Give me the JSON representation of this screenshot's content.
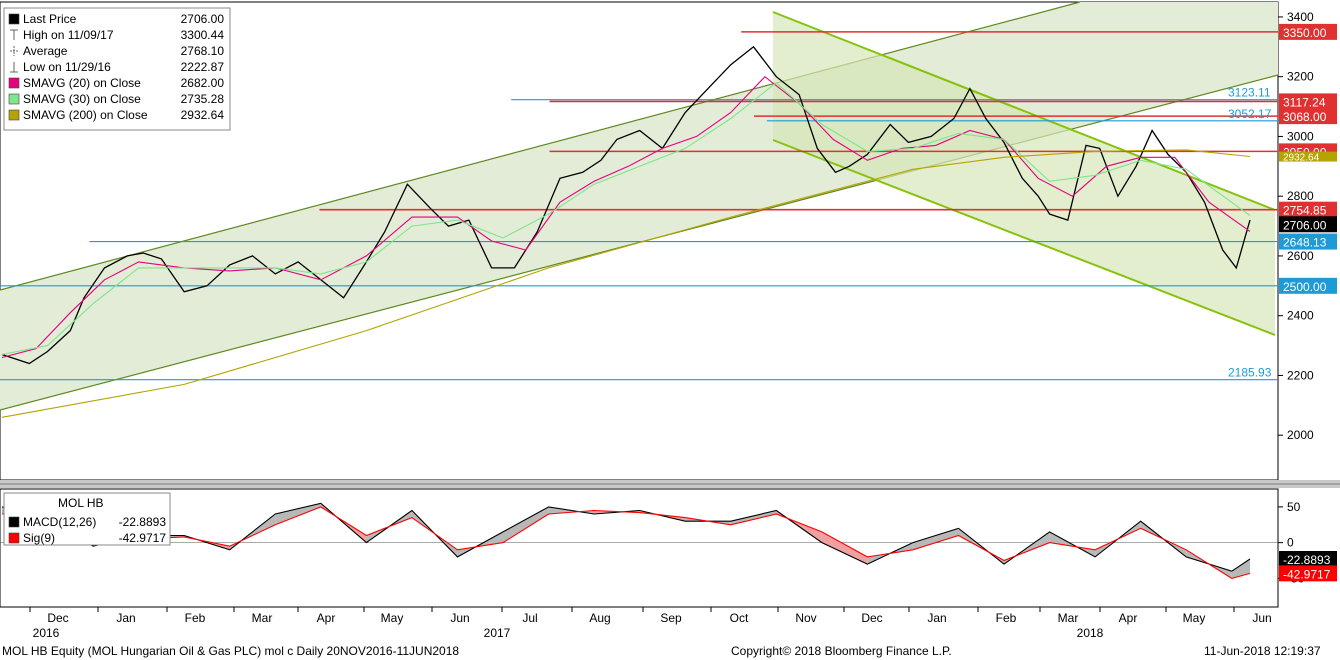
{
  "chart_data": {
    "type": "line",
    "security": "MOL HB",
    "x_ticks": {
      "months": [
        "Dec",
        "Jan",
        "Feb",
        "Mar",
        "Apr",
        "May",
        "Jun",
        "Jul",
        "Aug",
        "Sep",
        "Oct",
        "Nov",
        "Dec",
        "Jan",
        "Feb",
        "Mar",
        "Apr",
        "May",
        "Jun"
      ],
      "years": [
        "2016",
        "2017",
        "2018"
      ]
    },
    "price_axis": {
      "ylim": [
        1850,
        3450
      ],
      "ticks": [
        2000,
        2200,
        2400,
        2600,
        2800,
        3000,
        3200,
        3400
      ]
    },
    "legend": [
      {
        "label": "Last Price",
        "value": "2706.00",
        "color": "#000000",
        "kind": "box"
      },
      {
        "label": "High on 11/09/17",
        "value": "3300.44",
        "color": "#666666",
        "kind": "high"
      },
      {
        "label": "Average",
        "value": "2768.10",
        "color": "#666666",
        "kind": "avg"
      },
      {
        "label": "Low on 11/29/16",
        "value": "2222.87",
        "color": "#666666",
        "kind": "low"
      },
      {
        "label": "SMAVG (20) on Close",
        "value": "2682.00",
        "color": "#e6007e",
        "kind": "box"
      },
      {
        "label": "SMAVG (30) on Close",
        "value": "2735.28",
        "color": "#7ee68c",
        "kind": "box"
      },
      {
        "label": "SMAVG (200) on Close",
        "value": "2932.64",
        "color": "#b5a400",
        "kind": "box"
      }
    ],
    "series": [
      {
        "name": "Last Price",
        "color": "#000000",
        "x": [
          0,
          12,
          20,
          30,
          36,
          45,
          55,
          62,
          70,
          80,
          90,
          100,
          110,
          120,
          130,
          140,
          150,
          160,
          168,
          178,
          188,
          196,
          205,
          215,
          225,
          235,
          245,
          255,
          263,
          270,
          280,
          290,
          300,
          310,
          320,
          330,
          340,
          350,
          358,
          366,
          372,
          380,
          390,
          398,
          408,
          418,
          425,
          432,
          440,
          448,
          455,
          460,
          468,
          476,
          482,
          490,
          498,
          505,
          512,
          520,
          528,
          536,
          542,
          548
        ],
        "y": [
          2270,
          2240,
          2280,
          2350,
          2460,
          2560,
          2600,
          2610,
          2590,
          2480,
          2500,
          2570,
          2600,
          2540,
          2580,
          2520,
          2460,
          2580,
          2680,
          2840,
          2760,
          2700,
          2720,
          2560,
          2560,
          2680,
          2860,
          2880,
          2920,
          2990,
          3020,
          2960,
          3080,
          3160,
          3240,
          3300,
          3200,
          3140,
          2960,
          2880,
          2900,
          2940,
          3040,
          2980,
          3000,
          3060,
          3160,
          3060,
          2980,
          2860,
          2800,
          2740,
          2720,
          2970,
          2960,
          2800,
          2900,
          3020,
          2940,
          2880,
          2780,
          2620,
          2560,
          2720
        ]
      },
      {
        "name": "SMAVG (20) on Close",
        "color": "#e6007e",
        "x": [
          0,
          15,
          30,
          45,
          60,
          80,
          100,
          120,
          140,
          160,
          180,
          200,
          215,
          230,
          245,
          260,
          275,
          290,
          305,
          320,
          335,
          350,
          365,
          380,
          395,
          410,
          425,
          440,
          455,
          470,
          485,
          500,
          515,
          530,
          548
        ],
        "y": [
          2260,
          2290,
          2410,
          2520,
          2580,
          2560,
          2550,
          2560,
          2520,
          2600,
          2730,
          2730,
          2650,
          2620,
          2780,
          2850,
          2900,
          2960,
          3000,
          3080,
          3200,
          3110,
          2990,
          2920,
          2960,
          2970,
          3020,
          2990,
          2860,
          2800,
          2900,
          2930,
          2930,
          2780,
          2682
        ]
      },
      {
        "name": "SMAVG (30) on Close",
        "color": "#7ee68c",
        "x": [
          0,
          20,
          40,
          60,
          80,
          100,
          120,
          140,
          160,
          180,
          200,
          220,
          240,
          260,
          280,
          300,
          320,
          340,
          360,
          380,
          400,
          420,
          440,
          460,
          480,
          500,
          520,
          548
        ],
        "y": [
          2270,
          2300,
          2440,
          2560,
          2560,
          2560,
          2560,
          2540,
          2580,
          2700,
          2720,
          2660,
          2740,
          2840,
          2900,
          2960,
          3060,
          3180,
          3040,
          2950,
          2960,
          3010,
          2990,
          2850,
          2870,
          2920,
          2890,
          2735
        ]
      },
      {
        "name": "SMAVG (200) on Close",
        "color": "#b5a400",
        "x": [
          0,
          80,
          160,
          240,
          320,
          360,
          400,
          440,
          480,
          520,
          548
        ],
        "y": [
          2060,
          2170,
          2350,
          2560,
          2730,
          2810,
          2890,
          2930,
          2950,
          2955,
          2933
        ]
      }
    ],
    "levels": [
      {
        "value": 3350,
        "label": "3350.00",
        "color": "#e03030",
        "style": "box",
        "from": 0.58
      },
      {
        "value": 3123.11,
        "label": "3123.11",
        "color": "#1e9bd7",
        "style": "text",
        "from": 0.4
      },
      {
        "value": 3117.24,
        "label": "3117.24",
        "color": "#e03030",
        "style": "box",
        "from": 0.43
      },
      {
        "value": 3068,
        "label": "3068.00",
        "color": "#e03030",
        "style": "box",
        "from": 0.59
      },
      {
        "value": 3052.17,
        "label": "3052.17",
        "color": "#1e9bd7",
        "style": "text",
        "from": 0.6
      },
      {
        "value": 2950,
        "label": "2950.00",
        "color": "#e03030",
        "style": "box",
        "from": 0.43
      },
      {
        "value": 2754.85,
        "label": "2754.85",
        "color": "#e03030",
        "style": "box",
        "from": 0.25
      },
      {
        "value": 2648.13,
        "label": "2648.13",
        "color": "#1e9bd7",
        "style": "box",
        "from": 0.07
      },
      {
        "value": 2500,
        "label": "2500.00",
        "color": "#1e9bd7",
        "style": "box",
        "from": 0.0
      },
      {
        "value": 2185.93,
        "label": "2185.93",
        "color": "#1e9bd7",
        "style": "text",
        "from": 0.0
      }
    ],
    "last_price_tag": {
      "value": 2706,
      "label": "2706.00",
      "color": "#000000"
    },
    "sma200_tag": {
      "value": 2932.64,
      "label": "2932.64",
      "color": "#b5a400"
    },
    "macd_panel": {
      "title": "MOL HB",
      "ylim": [
        -90,
        75
      ],
      "ticks": [
        50,
        0,
        -50
      ],
      "zero_line": 0,
      "legend": [
        {
          "label": "MACD(12,26)",
          "value": "-22.8893",
          "color": "#000000"
        },
        {
          "label": "Sig(9)",
          "value": "-42.9717",
          "color": "#ff0000"
        }
      ],
      "macd": {
        "x": [
          0,
          20,
          40,
          60,
          80,
          100,
          120,
          140,
          160,
          180,
          200,
          220,
          240,
          260,
          280,
          300,
          320,
          340,
          360,
          380,
          400,
          420,
          440,
          460,
          480,
          500,
          520,
          540,
          548
        ],
        "y": [
          50,
          35,
          -5,
          10,
          10,
          -10,
          40,
          55,
          0,
          45,
          -20,
          15,
          50,
          40,
          45,
          30,
          30,
          45,
          0,
          -30,
          0,
          20,
          -30,
          15,
          -20,
          30,
          -20,
          -40,
          -22.8893
        ]
      },
      "signal": {
        "x": [
          0,
          20,
          40,
          60,
          80,
          100,
          120,
          140,
          160,
          180,
          200,
          220,
          240,
          260,
          280,
          300,
          320,
          340,
          360,
          380,
          400,
          420,
          440,
          460,
          480,
          500,
          520,
          540,
          548
        ],
        "y": [
          40,
          40,
          5,
          5,
          8,
          -5,
          25,
          50,
          10,
          35,
          -10,
          0,
          40,
          45,
          42,
          35,
          25,
          40,
          15,
          -20,
          -10,
          10,
          -25,
          0,
          -10,
          20,
          -10,
          -50,
          -42.9717
        ]
      },
      "macd_tag": {
        "value": -22.8893,
        "label": "-22.8893"
      },
      "signal_tag": {
        "value": -42.9717,
        "label": "-42.9717"
      }
    }
  },
  "footer": {
    "left": "MOL HB Equity (MOL Hungarian Oil & Gas PLC) mol c  Daily 20NOV2016-11JUN2018",
    "center": "Copyright© 2018 Bloomberg Finance L.P.",
    "right": "11-Jun-2018 12:19:37"
  }
}
